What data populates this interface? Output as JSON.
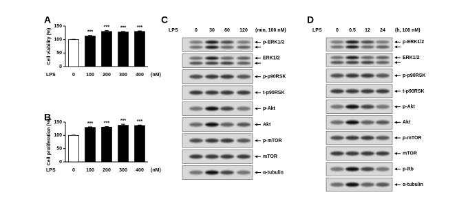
{
  "chart_data": [
    {
      "type": "bar",
      "panel": "A",
      "y_label": "Cell viability (%)",
      "x_label": "LPS",
      "x_unit": "(nM)",
      "categories": [
        "0",
        "100",
        "200",
        "300",
        "400"
      ],
      "values": [
        100,
        113,
        130,
        128,
        130
      ],
      "errors": [
        1,
        2,
        3,
        2,
        2
      ],
      "colors": [
        "#ffffff",
        "#000000",
        "#000000",
        "#000000",
        "#000000"
      ],
      "significance": [
        null,
        "***",
        "***",
        "***",
        "***"
      ],
      "ylim": [
        0,
        150
      ],
      "yticks": [
        0,
        50,
        100,
        150
      ]
    },
    {
      "type": "bar",
      "panel": "B",
      "y_label": "Cell proliferation (%)",
      "x_label": "LPS",
      "x_unit": "(nM)",
      "categories": [
        "0",
        "100",
        "200",
        "300",
        "400"
      ],
      "values": [
        100,
        130,
        131,
        138,
        137
      ],
      "errors": [
        1,
        2,
        2,
        4,
        2
      ],
      "colors": [
        "#ffffff",
        "#000000",
        "#000000",
        "#000000",
        "#000000"
      ],
      "significance": [
        null,
        "***",
        "***",
        "***",
        "***"
      ],
      "ylim": [
        0,
        150
      ],
      "yticks": [
        0,
        50,
        100,
        150
      ]
    }
  ],
  "blots": [
    {
      "panel": "C",
      "header": "LPS",
      "lanes": [
        "0",
        "30",
        "60",
        "120"
      ],
      "unit": "(min, 100 nM)",
      "rows": [
        "p-ERK1/2",
        "ERK1/2",
        "p-p90RSK",
        "t-p90RSK",
        "p-Akt",
        "Akt",
        "p-mTOR",
        "mTOR",
        "α-tubulin"
      ]
    },
    {
      "panel": "D",
      "header": "LPS",
      "lanes": [
        "0",
        "0.5",
        "12",
        "24"
      ],
      "unit": "(h, 100 nM)",
      "rows": [
        "p-ERK1/2",
        "ERK1/2",
        "p-p90RSK",
        "t-p90RSK",
        "p-Akt",
        "Akt",
        "p-mTOR",
        "mTOR",
        "p-Rb",
        "α-tubulin"
      ]
    }
  ]
}
